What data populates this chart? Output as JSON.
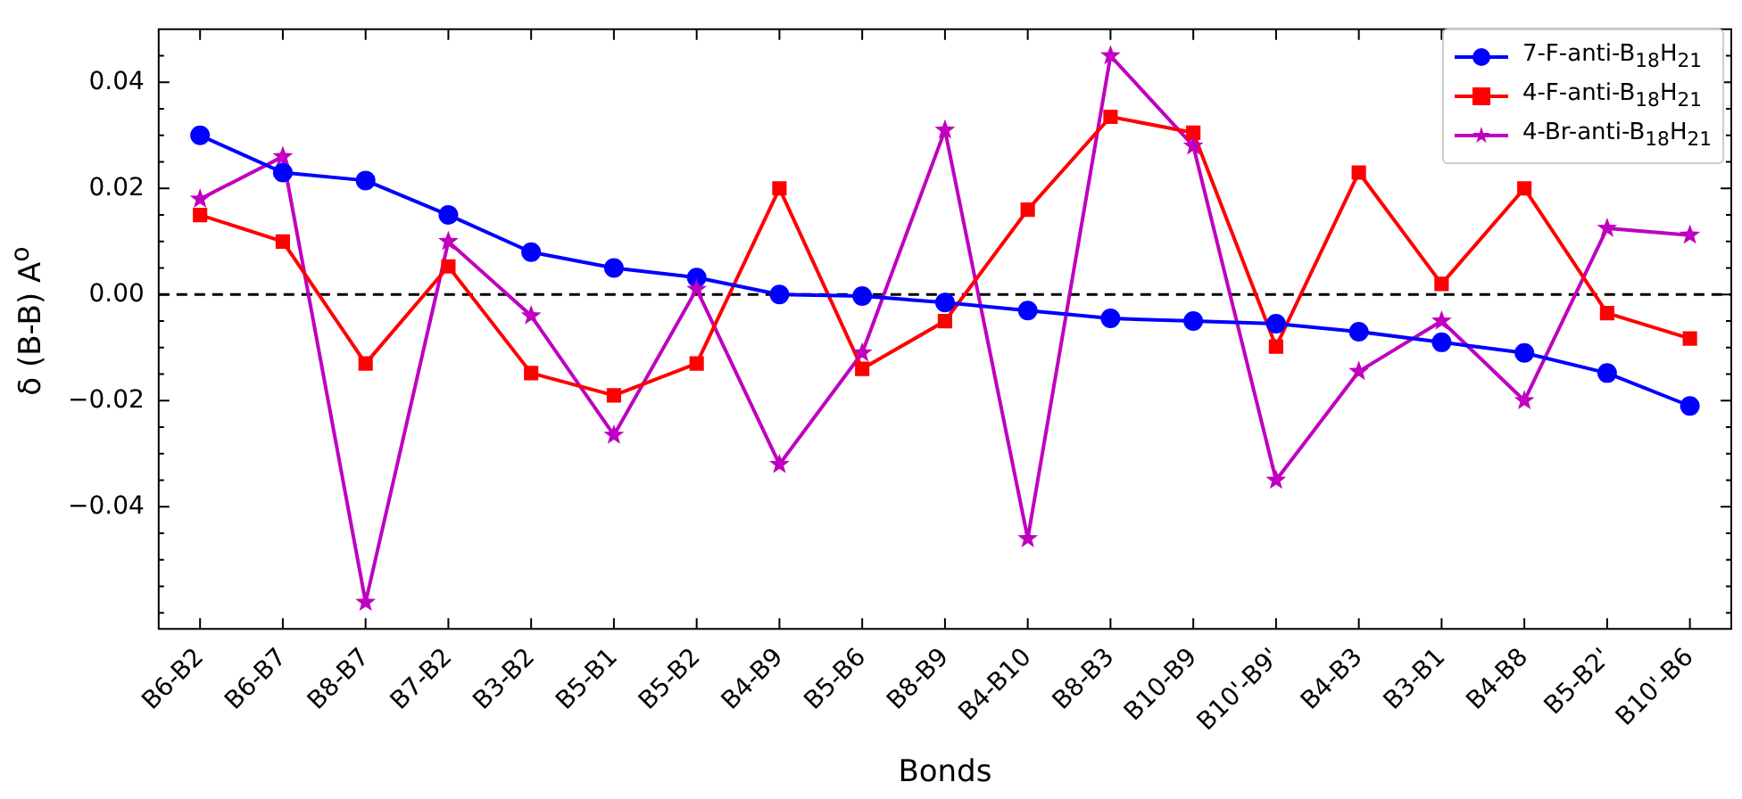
{
  "chart_data": {
    "type": "line",
    "xlabel": "Bonds",
    "ylabel": "δ (B-B) A$^{o}$",
    "categories": [
      "B6-B2",
      "B6-B7",
      "B8-B7",
      "B7-B2",
      "B3-B2",
      "B5-B1",
      "B5-B2",
      "B4-B9",
      "B5-B6",
      "B8-B9",
      "B4-B10",
      "B8-B3",
      "B10-B9",
      "B10'-B9'",
      "B4-B3",
      "B3-B1",
      "B4-B8",
      "B5-B2'",
      "B10'-B6"
    ],
    "series": [
      {
        "name": "7-F-anti-B$_{18}$H$_{21}$",
        "color": "#0000ff",
        "marker": "circle",
        "values": [
          0.03,
          0.023,
          0.0215,
          0.015,
          0.008,
          0.005,
          0.0032,
          0.0,
          -0.0003,
          -0.0015,
          -0.003,
          -0.0045,
          -0.005,
          -0.0055,
          -0.007,
          -0.009,
          -0.011,
          -0.0148,
          -0.021
        ]
      },
      {
        "name": "4-F-anti-B$_{18}$H$_{21}$",
        "color": "#ff0000",
        "marker": "square",
        "values": [
          0.015,
          0.01,
          -0.013,
          0.0053,
          -0.0148,
          -0.019,
          -0.013,
          0.02,
          -0.014,
          -0.005,
          0.016,
          0.0335,
          0.0305,
          -0.0098,
          0.023,
          0.002,
          0.02,
          -0.0035,
          -0.0083
        ]
      },
      {
        "name": "4-Br-anti-B$_{18}$H$_{21}$",
        "color": "#bf00bf",
        "marker": "star",
        "values": [
          0.018,
          0.026,
          -0.058,
          0.01,
          -0.004,
          -0.0265,
          0.001,
          -0.032,
          -0.011,
          0.031,
          -0.046,
          0.045,
          0.028,
          -0.035,
          -0.0145,
          -0.005,
          -0.02,
          0.0125,
          0.0112
        ]
      }
    ],
    "ylim": [
      -0.063,
      0.05
    ],
    "yticks": [
      {
        "value": -0.06,
        "label": null
      },
      {
        "value": -0.055,
        "label": null
      },
      {
        "value": -0.05,
        "label": null
      },
      {
        "value": -0.045,
        "label": null
      },
      {
        "value": -0.04,
        "label": "−0.04"
      },
      {
        "value": -0.035,
        "label": null
      },
      {
        "value": -0.03,
        "label": null
      },
      {
        "value": -0.025,
        "label": null
      },
      {
        "value": -0.02,
        "label": "−0.02"
      },
      {
        "value": -0.015,
        "label": null
      },
      {
        "value": -0.01,
        "label": null
      },
      {
        "value": -0.005,
        "label": null
      },
      {
        "value": 0,
        "label": "0.00"
      },
      {
        "value": 0.005,
        "label": null
      },
      {
        "value": 0.01,
        "label": null
      },
      {
        "value": 0.015,
        "label": null
      },
      {
        "value": 0.02,
        "label": "0.02"
      },
      {
        "value": 0.025,
        "label": null
      },
      {
        "value": 0.03,
        "label": null
      },
      {
        "value": 0.035,
        "label": null
      },
      {
        "value": 0.04,
        "label": "0.04"
      },
      {
        "value": 0.045,
        "label": null
      }
    ],
    "ref_lines": [
      {
        "axis": "y",
        "value": 0,
        "color": "#000000",
        "line_style": "dashed"
      }
    ],
    "legend": "top right",
    "grid": false,
    "line_style": "solid"
  }
}
